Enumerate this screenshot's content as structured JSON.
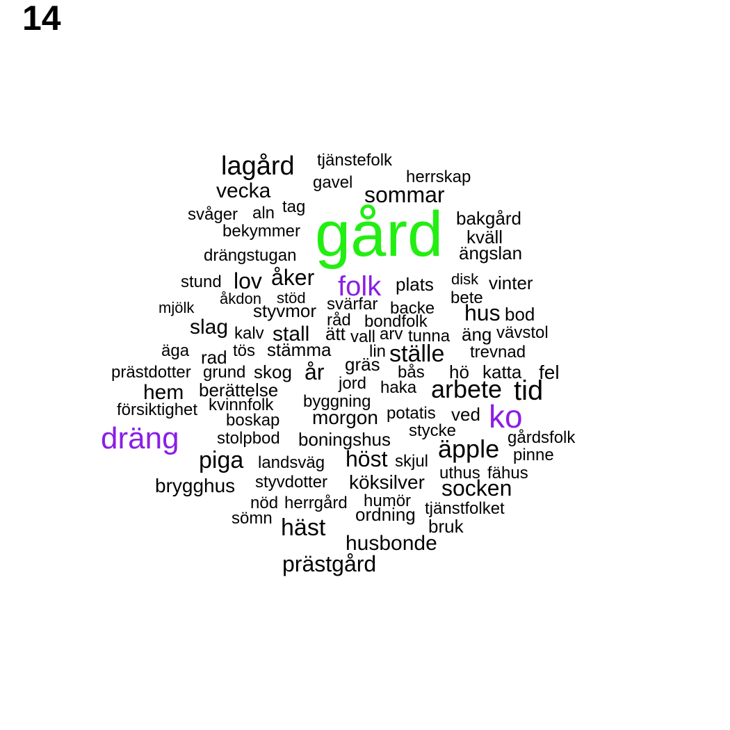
{
  "panel_label": "14",
  "colors": {
    "default": "#000000",
    "primary": "#22ee11",
    "secondary": "#8a1ee6"
  },
  "words": [
    {
      "text": "gård",
      "color": "primary"
    },
    {
      "text": "dräng",
      "color": "secondary"
    },
    {
      "text": "ko",
      "color": "secondary"
    },
    {
      "text": "folk",
      "color": "secondary"
    },
    {
      "text": "lagård"
    },
    {
      "text": "tjänstefolk"
    },
    {
      "text": "herrskap"
    },
    {
      "text": "gavel"
    },
    {
      "text": "vecka"
    },
    {
      "text": "sommar"
    },
    {
      "text": "tag"
    },
    {
      "text": "svåger"
    },
    {
      "text": "aln"
    },
    {
      "text": "bekymmer"
    },
    {
      "text": "bakgård"
    },
    {
      "text": "kväll"
    },
    {
      "text": "drängstugan"
    },
    {
      "text": "ängslan"
    },
    {
      "text": "stund"
    },
    {
      "text": "lov"
    },
    {
      "text": "åker"
    },
    {
      "text": "plats"
    },
    {
      "text": "disk"
    },
    {
      "text": "vinter"
    },
    {
      "text": "åkdon"
    },
    {
      "text": "stöd"
    },
    {
      "text": "mjölk"
    },
    {
      "text": "svärfar"
    },
    {
      "text": "bete"
    },
    {
      "text": "styvmor"
    },
    {
      "text": "backe"
    },
    {
      "text": "hus"
    },
    {
      "text": "bod"
    },
    {
      "text": "råd"
    },
    {
      "text": "bondfolk"
    },
    {
      "text": "slag"
    },
    {
      "text": "kalv"
    },
    {
      "text": "stall"
    },
    {
      "text": "ätt"
    },
    {
      "text": "vall"
    },
    {
      "text": "arv"
    },
    {
      "text": "tunna"
    },
    {
      "text": "äng"
    },
    {
      "text": "vävstol"
    },
    {
      "text": "äga"
    },
    {
      "text": "tös"
    },
    {
      "text": "stämma"
    },
    {
      "text": "lin"
    },
    {
      "text": "ställe"
    },
    {
      "text": "trevnad"
    },
    {
      "text": "rad"
    },
    {
      "text": "gräs"
    },
    {
      "text": "prästdotter"
    },
    {
      "text": "grund"
    },
    {
      "text": "skog"
    },
    {
      "text": "år"
    },
    {
      "text": "bås"
    },
    {
      "text": "hö"
    },
    {
      "text": "katta"
    },
    {
      "text": "fel"
    },
    {
      "text": "jord"
    },
    {
      "text": "hem"
    },
    {
      "text": "berättelse"
    },
    {
      "text": "haka"
    },
    {
      "text": "arbete"
    },
    {
      "text": "tid"
    },
    {
      "text": "byggning"
    },
    {
      "text": "kvinnfolk"
    },
    {
      "text": "försiktighet"
    },
    {
      "text": "potatis"
    },
    {
      "text": "boskap"
    },
    {
      "text": "morgon"
    },
    {
      "text": "ved"
    },
    {
      "text": "stycke"
    },
    {
      "text": "stolpbod"
    },
    {
      "text": "boningshus"
    },
    {
      "text": "gårdsfolk"
    },
    {
      "text": "äpple"
    },
    {
      "text": "piga"
    },
    {
      "text": "pinne"
    },
    {
      "text": "landsväg"
    },
    {
      "text": "höst"
    },
    {
      "text": "skjul"
    },
    {
      "text": "uthus"
    },
    {
      "text": "fähus"
    },
    {
      "text": "brygghus"
    },
    {
      "text": "styvdotter"
    },
    {
      "text": "köksilver"
    },
    {
      "text": "socken"
    },
    {
      "text": "nöd"
    },
    {
      "text": "herrgård"
    },
    {
      "text": "humör"
    },
    {
      "text": "tjänstfolket"
    },
    {
      "text": "sömn"
    },
    {
      "text": "ordning"
    },
    {
      "text": "häst"
    },
    {
      "text": "bruk"
    },
    {
      "text": "husbonde"
    },
    {
      "text": "prästgård"
    }
  ]
}
